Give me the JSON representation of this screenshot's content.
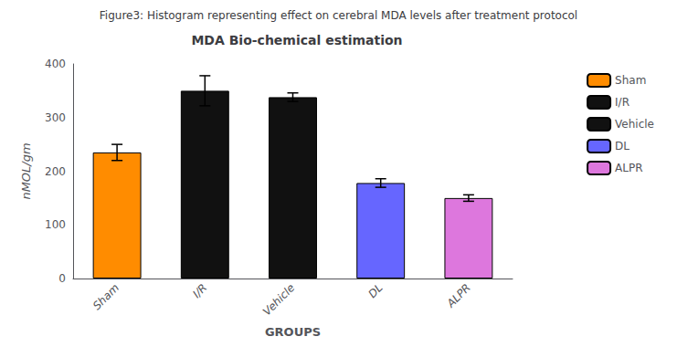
{
  "chart_data": {
    "type": "bar",
    "title": "MDA Bio-chemical estimation",
    "subtitle": "Figure3: Histogram representing effect on cerebral MDA levels after treatment protocol",
    "xlabel": "GROUPS",
    "ylabel": "nMOL/gm",
    "categories": [
      "Sham",
      "I/R",
      "Vehicle",
      "DL",
      "ALPR"
    ],
    "values": [
      235,
      350,
      338,
      178,
      150
    ],
    "errors": [
      15,
      28,
      8,
      8,
      6
    ],
    "colors": [
      "#FF8C00",
      "#111111",
      "#111111",
      "#6666FF",
      "#DD77DD"
    ],
    "ylim": [
      0,
      400
    ],
    "yticks": [
      0,
      100,
      200,
      300,
      400
    ],
    "legend": "right"
  }
}
